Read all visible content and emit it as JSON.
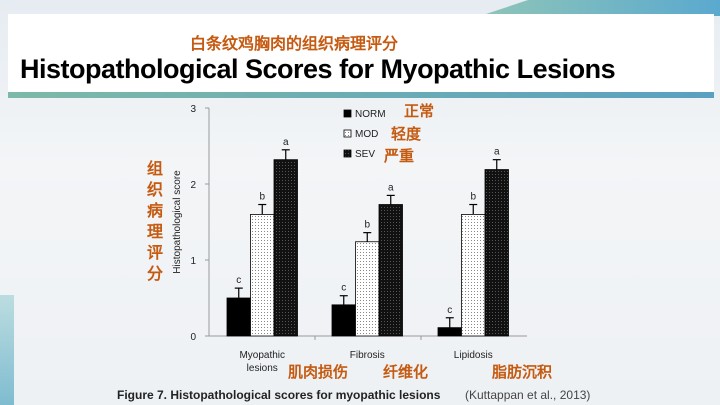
{
  "header": {
    "subtitle_cn": "白条纹鸡胸肉的组织病理评分",
    "title": "Histopathological Scores for Myopathic Lesions"
  },
  "annotations": {
    "ylabel_cn": "组织病理评分",
    "norm_cn": "正常",
    "mod_cn": "轻度",
    "sev_cn": "严重",
    "cat_cn": [
      "肌肉损伤",
      "纤维化",
      "脂肪沉积"
    ]
  },
  "caption": {
    "text": "Figure 7. Histopathological scores for myopathic lesions",
    "cite": "(Kuttappan et al., 2013)"
  },
  "colors": {
    "accent": "#c55a11",
    "bar": "#000000"
  },
  "chart_data": {
    "type": "bar",
    "categories": [
      "Myopathic lesions",
      "Fibrosis",
      "Lipidosis"
    ],
    "category_lines": [
      [
        "Myopathic",
        "lesions"
      ],
      [
        "Fibrosis"
      ],
      [
        "Lipidosis"
      ]
    ],
    "ylabel": "Histopathological score",
    "ylim": [
      0,
      3
    ],
    "yticks": [
      "0",
      "1",
      "2",
      "3"
    ],
    "legend": "top-center",
    "series": [
      {
        "name": "NORM",
        "fill": "solid-black",
        "values": [
          0.5,
          0.41,
          0.11
        ],
        "errors": [
          0.13,
          0.12,
          0.13
        ],
        "labels": [
          "c",
          "c",
          "c"
        ]
      },
      {
        "name": "MOD",
        "fill": "dotted-white",
        "values": [
          1.6,
          1.24,
          1.6
        ],
        "errors": [
          0.13,
          0.12,
          0.13
        ],
        "labels": [
          "b",
          "b",
          "b"
        ]
      },
      {
        "name": "SEV",
        "fill": "dark-crosshatch",
        "values": [
          2.32,
          1.73,
          2.19
        ],
        "errors": [
          0.13,
          0.12,
          0.13
        ],
        "labels": [
          "a",
          "a",
          "a"
        ]
      }
    ]
  }
}
